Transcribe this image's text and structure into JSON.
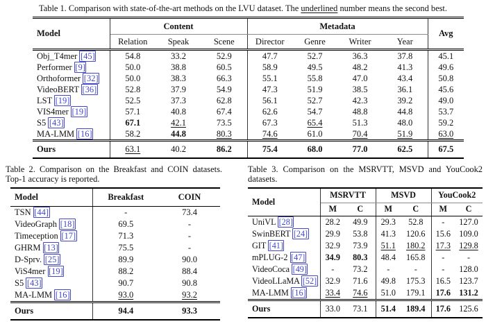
{
  "colors": {
    "link": "#4247d0",
    "rule": "#000000",
    "bar": "#333333",
    "cmidrule": "#8a8a8a",
    "text": "#111111",
    "background": "#ffffff"
  },
  "table1": {
    "caption": {
      "prefix": "Table 1. Comparison with state-of-the-art methods on the LVU dataset. The ",
      "underlined": "underlined",
      "suffix": " number means the second best."
    },
    "header": {
      "model": "Model",
      "avg": "Avg",
      "groups": [
        "Content",
        "Metadata"
      ],
      "subcols": [
        "Relation",
        "Speak",
        "Scene",
        "Director",
        "Genre",
        "Writer",
        "Year"
      ]
    },
    "rows": [
      {
        "model": "Obj_T4mer",
        "cite": "[45]",
        "values": [
          "54.8",
          "33.2",
          "52.9",
          "47.7",
          "52.7",
          "36.3",
          "37.8",
          "45.1"
        ],
        "styles": [
          "",
          "",
          "",
          "",
          "",
          "",
          "",
          ""
        ]
      },
      {
        "model": "Performer",
        "cite": "[9]",
        "values": [
          "50.0",
          "38.8",
          "60.5",
          "58.9",
          "49.5",
          "48.2",
          "41.3",
          "49.6"
        ],
        "styles": [
          "",
          "",
          "",
          "",
          "",
          "",
          "",
          ""
        ]
      },
      {
        "model": "Orthoformer",
        "cite": "[32]",
        "values": [
          "50.0",
          "38.3",
          "66.3",
          "55.1",
          "55.8",
          "47.0",
          "43.4",
          "50.8"
        ],
        "styles": [
          "",
          "",
          "",
          "",
          "",
          "",
          "",
          ""
        ]
      },
      {
        "model": "VideoBERT",
        "cite": "[36]",
        "values": [
          "52.8",
          "37.9",
          "54.9",
          "47.3",
          "51.9",
          "38.5",
          "36.1",
          "45.6"
        ],
        "styles": [
          "",
          "",
          "",
          "",
          "",
          "",
          "",
          ""
        ]
      },
      {
        "model": "LST",
        "cite": "[19]",
        "values": [
          "52.5",
          "37.3",
          "62.8",
          "56.1",
          "52.7",
          "42.3",
          "39.2",
          "49.0"
        ],
        "styles": [
          "",
          "",
          "",
          "",
          "",
          "",
          "",
          ""
        ]
      },
      {
        "model": "VIS4mer",
        "cite": "[19]",
        "values": [
          "57.1",
          "40.8",
          "67.4",
          "62.6",
          "54.7",
          "48.8",
          "44.8",
          "53.7"
        ],
        "styles": [
          "",
          "",
          "",
          "",
          "",
          "",
          "",
          ""
        ]
      },
      {
        "model": "S5",
        "cite": "[43]",
        "values": [
          "67.1",
          "42.1",
          "73.5",
          "67.3",
          "65.4",
          "51.3",
          "48.0",
          "59.2"
        ],
        "styles": [
          "b",
          "u",
          "",
          "",
          "u",
          "",
          "",
          ""
        ]
      },
      {
        "model": "MA-LMM",
        "cite": "[16]",
        "values": [
          "58.2",
          "44.8",
          "80.3",
          "74.6",
          "61.0",
          "70.4",
          "51.9",
          "63.0"
        ],
        "styles": [
          "",
          "b",
          "u",
          "u",
          "",
          "u",
          "u",
          "u"
        ]
      }
    ],
    "ours": {
      "model": "Ours",
      "cite": null,
      "values": [
        "63.1",
        "40.2",
        "86.2",
        "75.4",
        "68.0",
        "77.0",
        "62.5",
        "67.5"
      ],
      "styles": [
        "u",
        "",
        "b",
        "b",
        "b",
        "b",
        "b",
        "b"
      ]
    }
  },
  "table2": {
    "caption": "Table 2. Comparison on the Breakfast and COIN datasets. Top-1 accuracy is reported.",
    "header": {
      "model": "Model",
      "cols": [
        "Breakfast",
        "COIN"
      ]
    },
    "rows": [
      {
        "model": "TSN",
        "cite": "[44]",
        "values": [
          "-",
          "73.4"
        ],
        "styles": [
          "",
          ""
        ]
      },
      {
        "model": "VideoGraph",
        "cite": "[18]",
        "values": [
          "69.5",
          "-"
        ],
        "styles": [
          "",
          ""
        ]
      },
      {
        "model": "Timeception",
        "cite": "[17]",
        "values": [
          "71.3",
          "-"
        ],
        "styles": [
          "",
          ""
        ]
      },
      {
        "model": "GHRM",
        "cite": "[13]",
        "values": [
          "75.5",
          "-"
        ],
        "styles": [
          "",
          ""
        ]
      },
      {
        "model": "D-Sprv.",
        "cite": "[25]",
        "values": [
          "89.9",
          "90.0"
        ],
        "styles": [
          "",
          ""
        ]
      },
      {
        "model": "ViS4mer",
        "cite": "[19]",
        "values": [
          "88.2",
          "88.4"
        ],
        "styles": [
          "",
          ""
        ]
      },
      {
        "model": "S5",
        "cite": "[43]",
        "values": [
          "90.7",
          "90.8"
        ],
        "styles": [
          "",
          ""
        ]
      },
      {
        "model": "MA-LMM",
        "cite": "[16]",
        "values": [
          "93.0",
          "93.2"
        ],
        "styles": [
          "u",
          "u"
        ]
      }
    ],
    "ours": {
      "model": "Ours",
      "cite": null,
      "values": [
        "94.4",
        "93.3"
      ],
      "styles": [
        "b",
        "b"
      ]
    }
  },
  "table3": {
    "caption": "Table 3. Comparison on the MSRVTT, MSVD and YouCook2 datasets.",
    "header": {
      "model": "Model",
      "groups": [
        "MSRVTT",
        "MSVD",
        "YouCook2"
      ],
      "subcols": [
        "M",
        "C",
        "M",
        "C",
        "M",
        "C"
      ]
    },
    "rows": [
      {
        "model": "UniVL",
        "cite": "[28]",
        "values": [
          "28.2",
          "49.9",
          "29.3",
          "52.8",
          "-",
          "127.0"
        ],
        "styles": [
          "",
          "",
          "",
          "",
          "",
          ""
        ]
      },
      {
        "model": "SwinBERT",
        "cite": "[24]",
        "values": [
          "29.9",
          "53.8",
          "41.3",
          "120.6",
          "15.6",
          "109.0"
        ],
        "styles": [
          "",
          "",
          "",
          "",
          "",
          ""
        ]
      },
      {
        "model": "GIT",
        "cite": "[41]",
        "values": [
          "32.9",
          "73.9",
          "51.1",
          "180.2",
          "17.3",
          "129.8"
        ],
        "styles": [
          "",
          "",
          "u",
          "u",
          "u",
          "u"
        ]
      },
      {
        "model": "mPLUG-2",
        "cite": "[47]",
        "values": [
          "34.9",
          "80.3",
          "48.4",
          "165.8",
          "-",
          "-"
        ],
        "styles": [
          "b",
          "b",
          "",
          "",
          "",
          ""
        ]
      },
      {
        "model": "VideoCoca",
        "cite": "[49]",
        "values": [
          "-",
          "73.2",
          "-",
          "-",
          "-",
          "128.0"
        ],
        "styles": [
          "",
          "",
          "",
          "",
          "",
          ""
        ]
      },
      {
        "model": "VideoLLaMA",
        "cite": "[52]",
        "values": [
          "32.9",
          "71.6",
          "49.8",
          "175.3",
          "16.5",
          "123.7"
        ],
        "styles": [
          "",
          "",
          "",
          "",
          "",
          ""
        ]
      },
      {
        "model": "MA-LMM",
        "cite": "[16]",
        "values": [
          "33.4",
          "74.6",
          "51.0",
          "179.1",
          "17.6",
          "131.2"
        ],
        "styles": [
          "u",
          "u",
          "",
          "",
          "b",
          "b"
        ]
      }
    ],
    "ours": {
      "model": "Ours",
      "cite": null,
      "values": [
        "33.0",
        "73.1",
        "51.4",
        "189.4",
        "17.6",
        "125.6"
      ],
      "styles": [
        "",
        "",
        "b",
        "b",
        "b",
        ""
      ]
    }
  }
}
